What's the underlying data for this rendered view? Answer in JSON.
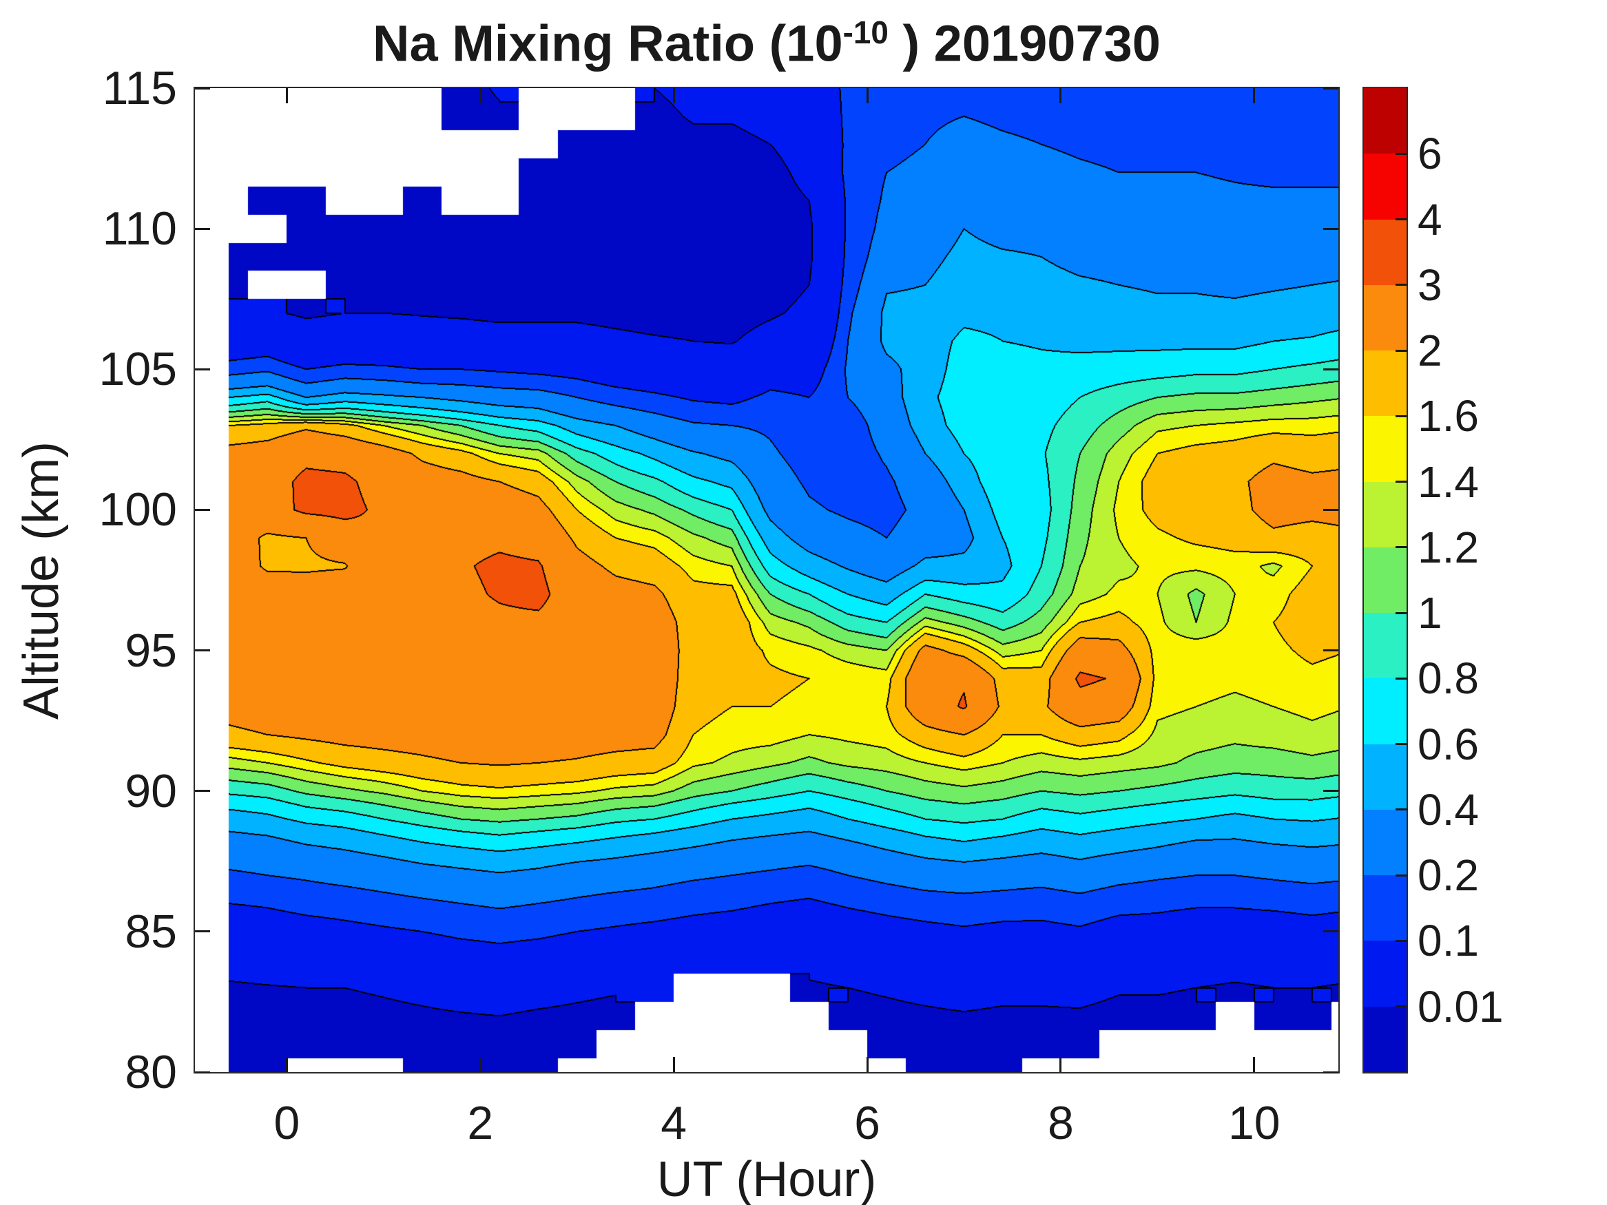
{
  "title": {
    "prefix": "Na Mixing Ratio (10",
    "exponent": "-10",
    "suffix": " ) 20190730"
  },
  "axes": {
    "x": {
      "label": "UT (Hour)",
      "tick_values": [
        0,
        2,
        4,
        6,
        8,
        10
      ],
      "tick_labels": [
        "0",
        "2",
        "4",
        "6",
        "8",
        "10"
      ]
    },
    "y": {
      "label": "Altitude (km)",
      "tick_values": [
        80,
        85,
        90,
        95,
        100,
        105,
        110,
        115
      ],
      "tick_labels": [
        "80",
        "85",
        "90",
        "95",
        "100",
        "105",
        "110",
        "115"
      ]
    }
  },
  "colorbar": {
    "tick_labels_top_to_bottom": [
      "6",
      "4",
      "3",
      "2",
      "1.6",
      "1.4",
      "1.2",
      "1",
      "0.8",
      "0.6",
      "0.4",
      "0.2",
      "0.1",
      "0.01"
    ]
  },
  "chart_data": {
    "type": "filled_contour",
    "title": "Na Mixing Ratio (10^-10 ) 20190730",
    "xlabel": "UT (Hour)",
    "ylabel": "Altitude (km)",
    "units": "10^-10 mixing ratio",
    "xlim": [
      -0.95,
      10.87
    ],
    "ylim": [
      80,
      115
    ],
    "grid_note": "values[i][j] = Na mixing ratio at ut[i], alt[j]; null = no data (white)",
    "levels": [
      0.01,
      0.1,
      0.2,
      0.4,
      0.6,
      0.8,
      1,
      1.2,
      1.4,
      1.6,
      2,
      3,
      4,
      6
    ],
    "band_colors": [
      "#0008C6",
      "#0019F0",
      "#0244FE",
      "#0280FF",
      "#00B2FF",
      "#00EEFF",
      "#2BF0C3",
      "#70ED65",
      "#BBF332",
      "#FCF500",
      "#FFBD00",
      "#FA8B0C",
      "#F25109",
      "#F60300",
      "#BD0000"
    ],
    "line_color": "#000000",
    "ut": [
      -0.6,
      -0.2,
      0.2,
      0.6,
      1.0,
      1.4,
      1.8,
      2.2,
      2.6,
      3.0,
      3.4,
      3.8,
      4.2,
      4.6,
      5.0,
      5.4,
      5.8,
      6.2,
      6.6,
      7.0,
      7.4,
      7.8,
      8.2,
      8.6,
      9.0,
      9.4,
      9.8,
      10.2,
      10.6,
      11.0
    ],
    "alt": [
      80,
      81,
      82,
      83,
      84,
      85,
      86,
      87,
      88,
      89,
      90,
      91,
      92,
      93,
      94,
      95,
      96,
      97,
      98,
      99,
      100,
      101,
      102,
      103,
      104,
      105,
      106,
      107,
      108,
      109,
      110,
      111,
      112,
      113,
      114,
      115
    ],
    "values": [
      [
        0.005,
        0.005,
        0.006,
        0.008,
        0.02,
        0.05,
        0.1,
        0.18,
        0.3,
        0.5,
        0.85,
        1.3,
        1.9,
        2.2,
        2.4,
        2.5,
        2.6,
        2.6,
        2.5,
        2.4,
        2.4,
        2.3,
        2.2,
        1.6,
        0.6,
        0.15,
        0.04,
        0.012,
        0.007,
        0.005,
        null,
        null,
        null,
        null,
        null,
        null
      ],
      [
        0.005,
        0.005,
        0.006,
        0.009,
        0.025,
        0.06,
        0.11,
        0.2,
        0.32,
        0.55,
        0.9,
        1.4,
        2.0,
        2.3,
        2.5,
        2.6,
        2.6,
        2.5,
        1.9,
        1.9,
        2.6,
        2.5,
        2.3,
        1.7,
        0.7,
        0.18,
        0.05,
        0.012,
        null,
        0.005,
        null,
        0.005,
        null,
        null,
        null,
        null
      ],
      [
        null,
        0.005,
        0.006,
        0.01,
        0.03,
        0.07,
        0.13,
        0.22,
        0.38,
        0.65,
        1.05,
        1.55,
        2.1,
        2.35,
        2.5,
        2.55,
        2.6,
        2.4,
        1.9,
        2.0,
        3.2,
        3.3,
        2.7,
        1.9,
        0.4,
        0.1,
        0.025,
        0.008,
        null,
        0.005,
        0.005,
        0.005,
        null,
        null,
        null,
        null
      ],
      [
        null,
        0.005,
        0.006,
        0.01,
        0.035,
        0.08,
        0.14,
        0.25,
        0.42,
        0.7,
        1.15,
        1.7,
        2.2,
        2.4,
        2.5,
        2.6,
        2.6,
        2.5,
        1.95,
        2.5,
        3.3,
        3.2,
        2.6,
        1.7,
        0.5,
        0.13,
        0.03,
        0.01,
        0.006,
        0.005,
        0.005,
        null,
        null,
        null,
        null,
        null
      ],
      [
        null,
        0.005,
        0.007,
        0.012,
        0.04,
        0.09,
        0.16,
        0.28,
        0.48,
        0.8,
        1.25,
        1.8,
        2.25,
        2.45,
        2.55,
        2.6,
        2.65,
        2.7,
        2.75,
        2.9,
        2.8,
        2.6,
        2.3,
        1.4,
        0.45,
        0.12,
        0.03,
        0.01,
        0.006,
        0.005,
        0.005,
        null,
        null,
        null,
        null,
        null
      ],
      [
        0.005,
        0.006,
        0.008,
        0.015,
        0.05,
        0.1,
        0.18,
        0.32,
        0.55,
        0.9,
        1.4,
        1.9,
        2.3,
        2.5,
        2.6,
        2.6,
        2.6,
        2.65,
        2.7,
        2.6,
        2.5,
        2.3,
        1.9,
        1.2,
        0.4,
        0.1,
        0.025,
        0.009,
        0.005,
        0.005,
        0.005,
        0.005,
        null,
        null,
        null,
        null
      ],
      [
        0.005,
        0.006,
        0.009,
        0.02,
        0.06,
        0.12,
        0.2,
        0.35,
        0.6,
        1.0,
        1.5,
        2.0,
        2.4,
        2.6,
        2.7,
        2.7,
        2.7,
        2.8,
        2.9,
        2.7,
        2.5,
        2.2,
        1.7,
        1.0,
        0.35,
        0.1,
        0.025,
        0.008,
        0.005,
        0.005,
        0.005,
        null,
        null,
        null,
        0.005,
        0.006
      ],
      [
        0.005,
        0.006,
        0.01,
        0.025,
        0.07,
        0.13,
        0.22,
        0.38,
        0.65,
        1.05,
        1.55,
        2.05,
        2.45,
        2.6,
        2.7,
        2.75,
        2.8,
        3.1,
        3.2,
        2.8,
        2.4,
        2.0,
        1.4,
        0.8,
        0.3,
        0.09,
        0.02,
        0.007,
        0.005,
        0.005,
        0.005,
        null,
        null,
        null,
        0.008,
        0.012
      ],
      [
        0.004,
        0.005,
        0.008,
        0.02,
        0.06,
        0.12,
        0.2,
        0.35,
        0.6,
        1.0,
        1.5,
        2.0,
        2.4,
        2.55,
        2.65,
        2.7,
        2.8,
        3.3,
        3.1,
        2.6,
        2.2,
        1.8,
        1.3,
        0.7,
        0.28,
        0.08,
        0.02,
        0.007,
        0.005,
        0.005,
        0.005,
        0.005,
        0.005,
        null,
        null,
        null
      ],
      [
        null,
        0.005,
        0.007,
        0.015,
        0.05,
        0.1,
        0.18,
        0.3,
        0.55,
        0.95,
        1.45,
        1.95,
        2.3,
        2.5,
        2.6,
        2.6,
        2.5,
        2.4,
        2.2,
        1.9,
        1.6,
        1.3,
        0.9,
        0.5,
        0.2,
        0.07,
        0.02,
        0.007,
        0.005,
        0.005,
        0.005,
        0.005,
        0.005,
        0.005,
        null,
        null
      ],
      [
        null,
        null,
        0.006,
        0.012,
        0.04,
        0.09,
        0.16,
        0.28,
        0.5,
        0.85,
        1.35,
        1.85,
        2.25,
        2.45,
        2.5,
        2.5,
        2.4,
        2.2,
        1.9,
        1.6,
        1.3,
        1.0,
        0.7,
        0.4,
        0.15,
        0.05,
        0.015,
        0.006,
        0.004,
        0.004,
        0.004,
        0.004,
        0.004,
        0.005,
        null,
        null
      ],
      [
        null,
        null,
        null,
        0.01,
        0.03,
        0.08,
        0.15,
        0.25,
        0.45,
        0.8,
        1.3,
        1.8,
        2.2,
        2.4,
        2.45,
        2.4,
        2.3,
        2.1,
        1.8,
        1.5,
        1.15,
        0.85,
        0.55,
        0.3,
        0.12,
        0.04,
        0.012,
        0.005,
        0.004,
        0.004,
        0.004,
        0.004,
        0.004,
        0.004,
        0.006,
        0.01
      ],
      [
        null,
        null,
        null,
        null,
        0.025,
        0.07,
        0.13,
        0.22,
        0.4,
        0.7,
        1.1,
        1.45,
        1.6,
        1.7,
        1.75,
        1.8,
        1.8,
        1.7,
        1.5,
        1.25,
        0.95,
        0.65,
        0.42,
        0.22,
        0.09,
        0.03,
        0.01,
        0.005,
        0.004,
        0.004,
        0.004,
        0.004,
        0.004,
        0.006,
        0.012,
        0.018
      ],
      [
        null,
        null,
        null,
        null,
        0.02,
        0.06,
        0.12,
        0.2,
        0.35,
        0.6,
        1.0,
        1.35,
        1.5,
        1.6,
        1.7,
        1.8,
        1.9,
        1.7,
        1.4,
        1.1,
        0.8,
        0.55,
        0.35,
        0.2,
        0.08,
        0.028,
        0.009,
        0.005,
        0.004,
        0.004,
        0.004,
        0.004,
        0.004,
        0.006,
        0.012,
        0.018
      ],
      [
        null,
        null,
        null,
        null,
        0.02,
        0.05,
        0.1,
        0.18,
        0.32,
        0.55,
        0.9,
        1.25,
        1.5,
        1.6,
        1.65,
        1.55,
        1.3,
        1.0,
        0.7,
        0.5,
        0.35,
        0.28,
        0.22,
        0.18,
        0.12,
        0.06,
        0.02,
        0.008,
        0.005,
        0.004,
        0.004,
        0.004,
        0.005,
        0.01,
        0.02,
        0.03
      ],
      [
        null,
        null,
        null,
        0.008,
        0.018,
        0.045,
        0.09,
        0.16,
        0.3,
        0.5,
        0.8,
        1.15,
        1.4,
        1.55,
        1.6,
        1.45,
        1.15,
        0.8,
        0.5,
        0.32,
        0.22,
        0.18,
        0.15,
        0.13,
        0.1,
        0.06,
        0.03,
        0.015,
        0.01,
        0.008,
        0.008,
        0.01,
        0.02,
        0.03,
        0.04,
        0.05
      ],
      [
        null,
        null,
        0.006,
        0.01,
        0.025,
        0.06,
        0.11,
        0.2,
        0.35,
        0.6,
        0.9,
        1.25,
        1.45,
        1.6,
        1.55,
        1.3,
        0.9,
        0.6,
        0.38,
        0.25,
        0.18,
        0.15,
        0.14,
        0.14,
        0.2,
        0.22,
        0.2,
        0.18,
        0.15,
        0.13,
        0.12,
        0.12,
        0.13,
        0.12,
        0.12,
        0.12
      ],
      [
        null,
        0.005,
        0.007,
        0.012,
        0.03,
        0.07,
        0.13,
        0.24,
        0.42,
        0.7,
        1.0,
        1.3,
        1.5,
        1.6,
        1.5,
        1.2,
        0.8,
        0.5,
        0.3,
        0.2,
        0.16,
        0.18,
        0.22,
        0.28,
        0.32,
        0.35,
        0.45,
        0.45,
        0.38,
        0.3,
        0.25,
        0.22,
        0.2,
        0.18,
        0.15,
        0.13
      ],
      [
        0.005,
        0.006,
        0.008,
        0.015,
        0.04,
        0.08,
        0.15,
        0.28,
        0.5,
        0.8,
        1.1,
        1.4,
        1.8,
        2.5,
        2.7,
        2.2,
        1.3,
        0.8,
        0.45,
        0.3,
        0.25,
        0.3,
        0.4,
        0.5,
        0.55,
        0.5,
        0.5,
        0.45,
        0.4,
        0.35,
        0.3,
        0.25,
        0.22,
        0.2,
        0.18,
        0.15
      ],
      [
        0.005,
        0.006,
        0.009,
        0.018,
        0.045,
        0.09,
        0.16,
        0.3,
        0.55,
        0.85,
        1.15,
        1.5,
        2.0,
        3.1,
        2.9,
        1.8,
        1.1,
        0.7,
        0.45,
        0.35,
        0.4,
        0.5,
        0.6,
        0.7,
        0.72,
        0.7,
        0.65,
        0.55,
        0.5,
        0.45,
        0.4,
        0.35,
        0.3,
        0.25,
        0.2,
        0.18
      ],
      [
        0.004,
        0.005,
        0.008,
        0.015,
        0.04,
        0.08,
        0.15,
        0.28,
        0.5,
        0.8,
        1.1,
        1.4,
        1.6,
        1.9,
        1.8,
        1.3,
        0.9,
        0.65,
        0.55,
        0.6,
        0.7,
        0.78,
        0.75,
        0.72,
        0.7,
        0.68,
        0.6,
        0.55,
        0.5,
        0.42,
        0.35,
        0.3,
        0.25,
        0.22,
        0.18,
        0.15
      ],
      [
        null,
        0.005,
        0.008,
        0.015,
        0.04,
        0.08,
        0.14,
        0.26,
        0.45,
        0.7,
        1.0,
        1.3,
        1.6,
        1.9,
        1.75,
        1.4,
        1.1,
        0.9,
        0.8,
        0.75,
        0.72,
        0.75,
        0.78,
        0.75,
        0.7,
        0.65,
        0.58,
        0.52,
        0.45,
        0.4,
        0.35,
        0.3,
        0.25,
        0.2,
        0.17,
        0.14
      ],
      [
        null,
        0.005,
        0.008,
        0.018,
        0.05,
        0.09,
        0.16,
        0.3,
        0.5,
        0.75,
        1.05,
        1.35,
        1.8,
        2.6,
        3.2,
        2.4,
        1.6,
        1.3,
        1.2,
        1.15,
        1.1,
        1.05,
        1.0,
        0.9,
        0.8,
        0.68,
        0.55,
        0.48,
        0.42,
        0.36,
        0.3,
        0.26,
        0.22,
        0.18,
        0.15,
        0.12
      ],
      [
        null,
        null,
        0.006,
        0.012,
        0.035,
        0.07,
        0.13,
        0.25,
        0.45,
        0.7,
        1.0,
        1.3,
        1.7,
        2.4,
        2.9,
        2.2,
        1.7,
        1.45,
        1.35,
        1.4,
        1.45,
        1.4,
        1.3,
        1.1,
        0.9,
        0.7,
        0.55,
        0.48,
        0.4,
        0.35,
        0.3,
        0.25,
        0.2,
        0.17,
        0.14,
        0.12
      ],
      [
        null,
        null,
        0.006,
        0.012,
        0.03,
        0.07,
        0.12,
        0.22,
        0.4,
        0.65,
        0.95,
        1.25,
        1.35,
        1.45,
        1.5,
        1.5,
        1.45,
        1.4,
        1.45,
        1.55,
        1.7,
        1.75,
        1.6,
        1.35,
        1.0,
        0.72,
        0.55,
        0.45,
        0.38,
        0.32,
        0.28,
        0.24,
        0.2,
        0.17,
        0.14,
        0.12
      ],
      [
        null,
        null,
        0.005,
        0.01,
        0.03,
        0.06,
        0.11,
        0.2,
        0.35,
        0.6,
        0.9,
        1.15,
        1.3,
        1.4,
        1.5,
        1.55,
        1.2,
        1.15,
        1.45,
        1.65,
        1.8,
        1.85,
        1.7,
        1.4,
        1.05,
        0.75,
        0.55,
        0.45,
        0.38,
        0.32,
        0.27,
        0.23,
        0.2,
        0.17,
        0.14,
        0.12
      ],
      [
        null,
        null,
        null,
        0.008,
        0.025,
        0.06,
        0.11,
        0.2,
        0.35,
        0.55,
        0.85,
        1.1,
        1.25,
        1.35,
        1.45,
        1.5,
        1.45,
        1.4,
        1.5,
        1.7,
        1.85,
        1.9,
        1.75,
        1.45,
        1.05,
        0.75,
        0.55,
        0.45,
        0.36,
        0.3,
        0.26,
        0.22,
        0.19,
        0.16,
        0.13,
        0.11
      ],
      [
        null,
        null,
        0.005,
        0.01,
        0.03,
        0.06,
        0.12,
        0.22,
        0.38,
        0.6,
        0.9,
        1.1,
        1.3,
        1.4,
        1.5,
        1.55,
        1.6,
        1.5,
        1.35,
        1.9,
        2.2,
        2.2,
        1.9,
        1.5,
        1.1,
        0.8,
        0.6,
        0.48,
        0.38,
        0.3,
        0.26,
        0.22,
        0.18,
        0.15,
        0.13,
        0.11
      ],
      [
        null,
        null,
        0.005,
        0.01,
        0.03,
        0.07,
        0.13,
        0.24,
        0.4,
        0.62,
        0.9,
        1.15,
        1.35,
        1.45,
        1.55,
        1.65,
        1.75,
        1.75,
        1.6,
        1.8,
        2.15,
        2.1,
        1.8,
        1.5,
        1.15,
        0.85,
        0.62,
        0.5,
        0.4,
        0.32,
        0.27,
        0.22,
        0.18,
        0.15,
        0.12,
        0.1
      ],
      [
        null,
        null,
        null,
        0.008,
        0.025,
        0.06,
        0.12,
        0.22,
        0.38,
        0.58,
        0.85,
        1.1,
        1.3,
        1.4,
        1.5,
        1.6,
        1.75,
        1.8,
        1.7,
        1.9,
        2.2,
        2.15,
        1.85,
        1.55,
        1.2,
        0.9,
        0.68,
        0.52,
        0.42,
        0.33,
        0.27,
        0.22,
        0.18,
        0.15,
        0.12,
        0.1
      ]
    ]
  }
}
